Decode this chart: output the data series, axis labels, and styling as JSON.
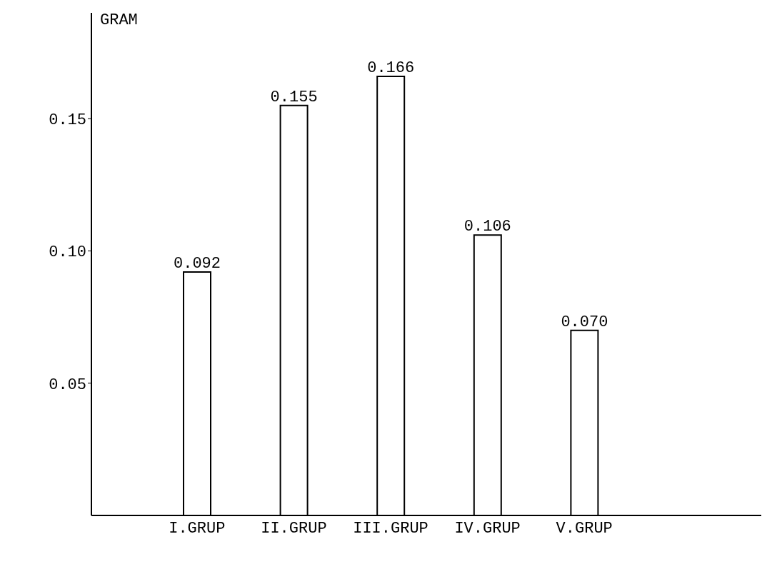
{
  "chart_data": {
    "type": "bar",
    "ylabel": "GRAM",
    "categories": [
      "I.GRUP",
      "II.GRUP",
      "III.GRUP",
      "IV.GRUP",
      "V.GRUP"
    ],
    "values": [
      0.092,
      0.155,
      0.166,
      0.106,
      0.07
    ],
    "color": "#000000",
    "ylim": [
      0,
      0.19
    ],
    "yticks": [
      {
        "value": 0.05,
        "label": "0.05"
      },
      {
        "value": 0.1,
        "label": "0.10"
      },
      {
        "value": 0.15,
        "label": "0.15"
      }
    ],
    "value_labels": [
      "0.092",
      "0.155",
      "0.166",
      "0.106",
      "0.070"
    ],
    "grid": false
  }
}
